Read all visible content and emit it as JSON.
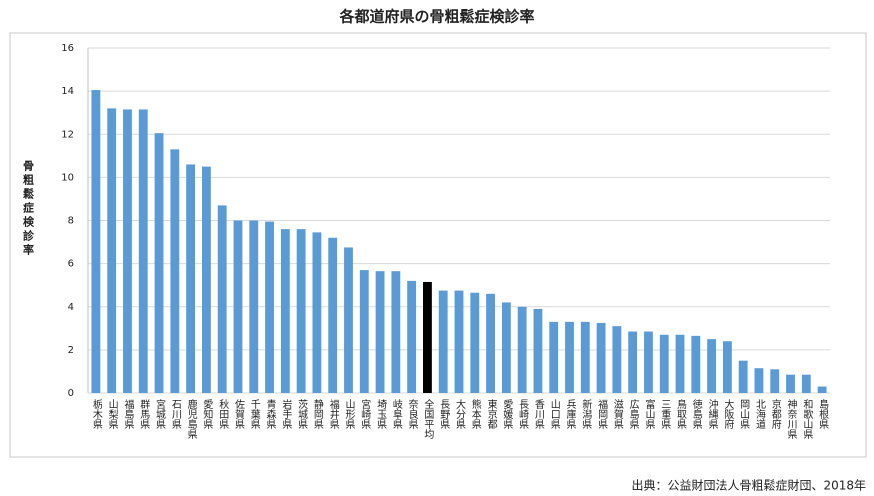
{
  "chart_data": {
    "type": "bar",
    "title": "各都道府県の骨粗鬆症検診率",
    "y_label": "骨粗鬆症検診率",
    "source": "出典：公益財団法人骨粗鬆症財団、2018年",
    "categories": [
      "栃木県",
      "山梨県",
      "福島県",
      "群馬県",
      "宮城県",
      "石川県",
      "鹿児島県",
      "愛知県",
      "秋田県",
      "佐賀県",
      "千葉県",
      "青森県",
      "岩手県",
      "茨城県",
      "静岡県",
      "福井県",
      "山形県",
      "宮崎県",
      "埼玉県",
      "岐阜県",
      "奈良県",
      "全国平均",
      "長野県",
      "大分県",
      "熊本県",
      "東京都",
      "愛媛県",
      "長崎県",
      "香川県",
      "山口県",
      "兵庫県",
      "新潟県",
      "福岡県",
      "滋賀県",
      "広島県",
      "富山県",
      "三重県",
      "鳥取県",
      "徳島県",
      "沖縄県",
      "大阪府",
      "岡山県",
      "北海道",
      "京都府",
      "神奈川県",
      "和歌山県",
      "島根県"
    ],
    "values": [
      14.05,
      13.2,
      13.15,
      13.15,
      12.05,
      11.3,
      10.6,
      10.5,
      8.7,
      8.0,
      8.0,
      7.95,
      7.6,
      7.6,
      7.45,
      7.2,
      6.75,
      5.7,
      5.65,
      5.65,
      5.2,
      5.15,
      4.75,
      4.75,
      4.65,
      4.6,
      4.2,
      4.0,
      3.9,
      3.3,
      3.3,
      3.3,
      3.25,
      3.1,
      2.85,
      2.85,
      2.7,
      2.7,
      2.65,
      2.5,
      2.4,
      1.5,
      1.15,
      1.1,
      0.85,
      0.85,
      0.3
    ],
    "color": "#5b9bd5",
    "highlight_color": "#000000",
    "highlight_category": "全国平均",
    "ylim": [
      0,
      16
    ],
    "yticks": [
      0,
      2,
      4,
      6,
      8,
      10,
      12,
      14,
      16
    ],
    "grid": true
  }
}
